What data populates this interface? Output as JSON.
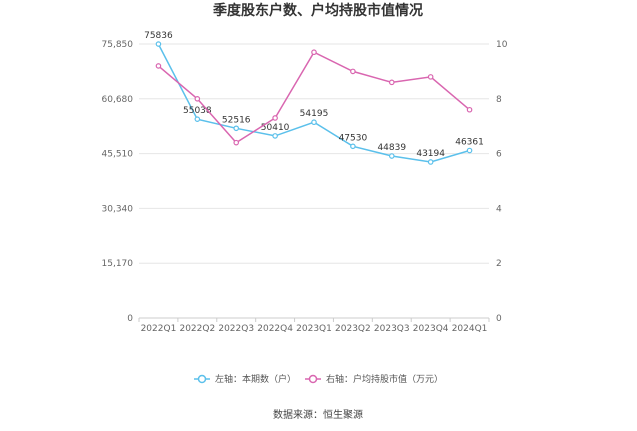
{
  "chart_data": {
    "type": "line",
    "title": "季度股东户数、户均持股市值情况",
    "categories": [
      "2022Q1",
      "2022Q2",
      "2022Q3",
      "2022Q4",
      "2023Q1",
      "2023Q2",
      "2023Q3",
      "2023Q4",
      "2024Q1"
    ],
    "series": [
      {
        "name": "左轴：本期数（户）",
        "axis": "left",
        "color": "#5bc0eb",
        "values": [
          75836,
          55038,
          52516,
          50410,
          54195,
          47530,
          44839,
          43194,
          46361
        ],
        "labels": [
          "75836",
          "55038",
          "52516",
          "50410",
          "54195",
          "47530",
          "44839",
          "43194",
          "46361"
        ]
      },
      {
        "name": "右轴：户均持股市值（万元）",
        "axis": "right",
        "color": "#d966b0",
        "values": [
          9.2,
          8.0,
          6.4,
          7.3,
          9.7,
          9.0,
          8.6,
          8.8,
          7.6
        ]
      }
    ],
    "left_axis": {
      "ylim": [
        0,
        75850
      ],
      "ticks": [
        0,
        15170,
        30340,
        45510,
        60680,
        75850
      ],
      "tick_labels": [
        "0",
        "15,170",
        "30,340",
        "45,510",
        "60,680",
        "75,850"
      ]
    },
    "right_axis": {
      "ylim": [
        0,
        10
      ],
      "ticks": [
        0,
        2,
        4,
        6,
        8,
        10
      ],
      "tick_labels": [
        "0",
        "2",
        "4",
        "6",
        "8",
        "10"
      ]
    },
    "grid": true,
    "legend_position": "bottom",
    "source": "数据来源：恒生聚源"
  }
}
